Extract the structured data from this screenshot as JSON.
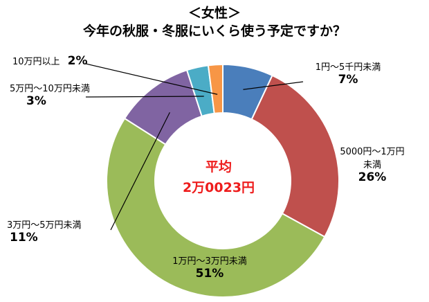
{
  "title": "＜女性＞",
  "subtitle": "今年の秋服・冬服にいくら使う予定ですか？",
  "center": {
    "label": "平均",
    "value": "2万0023円"
  },
  "chart_data": {
    "type": "pie",
    "donut": true,
    "title": "今年の秋服・冬服にいくら使う予定ですか？",
    "categories": [
      "1円～5千円未満",
      "5000円～1万円未満",
      "1万円～3万円未満",
      "3万円～5万円未満",
      "5万円～10万円未満",
      "10万円以上"
    ],
    "values": [
      7,
      26,
      51,
      11,
      3,
      2
    ],
    "labels": [
      "7%",
      "26%",
      "51%",
      "11%",
      "3%",
      "2%"
    ],
    "colors": [
      "#4a7ebb",
      "#bf504d",
      "#9bbb59",
      "#8064a2",
      "#4bacc6",
      "#f79646"
    ]
  },
  "labels": {
    "s1_name": "1円～5千円未満",
    "s2_name_line1": "5000円～1万円",
    "s2_name_line2": "未満",
    "s3_name": "1万円～3万円未満",
    "s4_name": "3万円～5万円未満",
    "s5_name": "5万円～10万円未満",
    "s6_name": "10万円以上"
  }
}
